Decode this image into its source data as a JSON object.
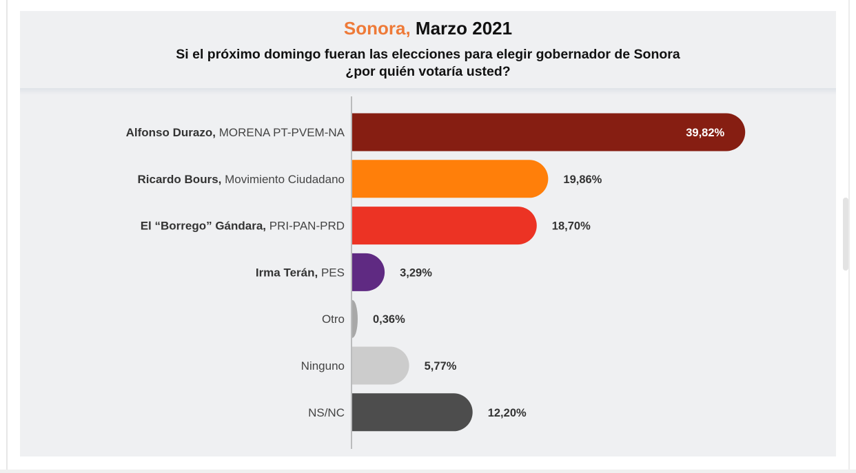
{
  "header": {
    "title_accent": "Sonora,",
    "title_rest": "Marzo 2021",
    "subtitle_line1": "Si el próximo domingo fueran las elecciones para elegir gobernador de Sonora",
    "subtitle_line2": "¿por quién votaría usted?"
  },
  "chart_data": {
    "type": "bar",
    "orientation": "horizontal",
    "title": "Sonora, Marzo 2021",
    "subtitle": "Si el próximo domingo fueran las elecciones para elegir gobernador de Sonora ¿por quién votaría usted?",
    "categories": [
      {
        "name": "Alfonso Durazo,",
        "party": "MORENA PT-PVEM-NA"
      },
      {
        "name": "Ricardo Bours,",
        "party": "Movimiento Ciudadano"
      },
      {
        "name": "El “Borrego” Gándara,",
        "party": "PRI-PAN-PRD"
      },
      {
        "name": "Irma Terán,",
        "party": "PES"
      },
      {
        "name": "",
        "party": "Otro"
      },
      {
        "name": "",
        "party": "Ninguno"
      },
      {
        "name": "",
        "party": "NS/NC"
      }
    ],
    "values": [
      39.82,
      19.86,
      18.7,
      3.29,
      0.36,
      5.77,
      12.2
    ],
    "value_labels": [
      "39,82%",
      "19,86%",
      "18,70%",
      "3,29%",
      "0,36%",
      "5,77%",
      "12,20%"
    ],
    "colors": [
      "#861e12",
      "#ff7f0a",
      "#ec3324",
      "#5f2a82",
      "#a8a8a8",
      "#cccccc",
      "#4d4d4d"
    ],
    "label_inside": [
      true,
      false,
      false,
      false,
      false,
      false,
      false
    ],
    "grid": false,
    "legend": "none"
  }
}
